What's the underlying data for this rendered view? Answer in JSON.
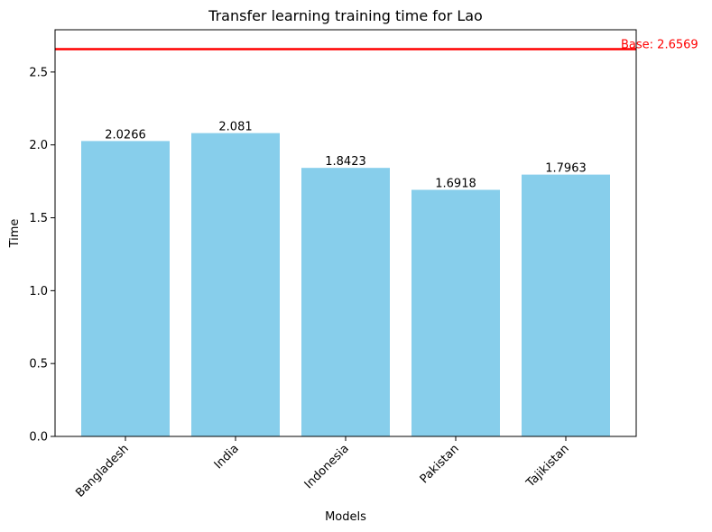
{
  "chart_data": {
    "type": "bar",
    "title": "Transfer learning training time for Lao",
    "xlabel": "Models",
    "ylabel": "Time",
    "categories": [
      "Bangladesh",
      "India",
      "Indonesia",
      "Pakistan",
      "Tajikistan"
    ],
    "values": [
      2.0266,
      2.081,
      1.8423,
      1.6918,
      1.7963
    ],
    "data_labels": [
      "2.0266",
      "2.081",
      "1.8423",
      "1.6918",
      "1.7963"
    ],
    "ylim": [
      0,
      2.79
    ],
    "yticks": [
      0.0,
      0.5,
      1.0,
      1.5,
      2.0,
      2.5
    ],
    "ytick_labels": [
      "0.0",
      "0.5",
      "1.0",
      "1.5",
      "2.0",
      "2.5"
    ],
    "reference_line": {
      "value": 2.6569,
      "label": "Base: 2.6569",
      "color": "#ff0000"
    },
    "bar_color": "#87ceeb",
    "grid": false,
    "legend": "none"
  }
}
